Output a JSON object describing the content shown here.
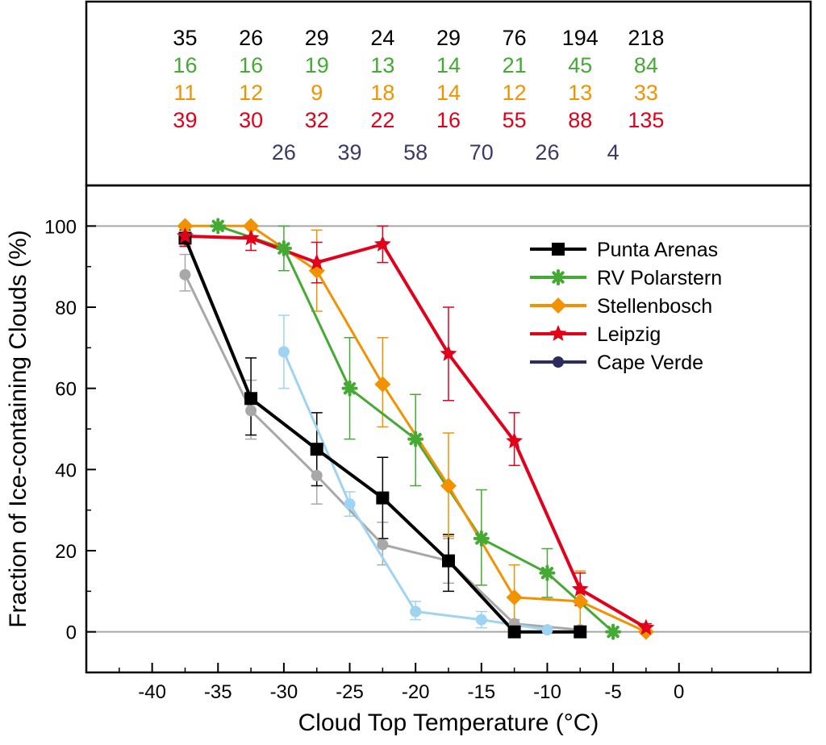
{
  "chart_data": {
    "type": "line",
    "xlabel": "Cloud Top Temperature (°C)",
    "ylabel": "Fraction of Ice-containing Clouds (%)",
    "xlim": [
      -45,
      10
    ],
    "ylim": [
      -10,
      110
    ],
    "xticks": [
      -40,
      -35,
      -30,
      -25,
      -20,
      -15,
      -10,
      -5,
      0
    ],
    "yticks": [
      0,
      20,
      40,
      60,
      80,
      100
    ],
    "grid_lines_y": [
      0,
      100
    ],
    "legend_position": "top-right",
    "legend": [
      {
        "label": "Punta Arenas",
        "color": "#000000",
        "marker": "square"
      },
      {
        "label": "RV Polarstern",
        "color": "#44aa33",
        "marker": "asterisk"
      },
      {
        "label": "Stellenbosch",
        "color": "#f39200",
        "marker": "diamond"
      },
      {
        "label": "Leipzig",
        "color": "#e2001a",
        "marker": "star"
      },
      {
        "label": "Cape Verde",
        "color": "#2c2c5e",
        "marker": "circle"
      }
    ],
    "series": [
      {
        "name": "",
        "color": "#a8a8a8",
        "marker": "circle",
        "line_width": 3,
        "points": [
          {
            "x": -37.5,
            "y": 88,
            "lo": 84,
            "hi": 93
          },
          {
            "x": -32.5,
            "y": 54.5,
            "lo": 47.5,
            "hi": 62
          },
          {
            "x": -27.5,
            "y": 38.5,
            "lo": 31.5,
            "hi": 46
          },
          {
            "x": -22.5,
            "y": 21.5,
            "lo": 16.5,
            "hi": 27
          },
          {
            "x": -17.5,
            "y": 17.5,
            "lo": 12,
            "hi": 23
          },
          {
            "x": -12.5,
            "y": 2,
            "lo": 1,
            "hi": 3
          },
          {
            "x": -7.5,
            "y": 0.5,
            "lo": 0,
            "hi": 1
          }
        ]
      },
      {
        "name": "",
        "color": "#9ed4f2",
        "marker": "circle",
        "line_width": 3,
        "points": [
          {
            "x": -30,
            "y": 69,
            "lo": 60,
            "hi": 78
          },
          {
            "x": -25,
            "y": 31.5,
            "lo": 28.5,
            "hi": 34.5
          },
          {
            "x": -20,
            "y": 5,
            "lo": 3,
            "hi": 7.5
          },
          {
            "x": -15,
            "y": 3,
            "lo": 1,
            "hi": 5
          },
          {
            "x": -10,
            "y": 0.5,
            "lo": 0,
            "hi": 1
          }
        ]
      },
      {
        "name": "Punta Arenas",
        "color": "#000000",
        "marker": "square",
        "line_width": 4,
        "points": [
          {
            "x": -37.5,
            "y": 97,
            "lo": 95,
            "hi": 99
          },
          {
            "x": -32.5,
            "y": 57.5,
            "lo": 48.5,
            "hi": 67.5
          },
          {
            "x": -27.5,
            "y": 45,
            "lo": 36,
            "hi": 54
          },
          {
            "x": -22.5,
            "y": 33,
            "lo": 23,
            "hi": 43
          },
          {
            "x": -17.5,
            "y": 17.5,
            "lo": 10,
            "hi": 24
          },
          {
            "x": -12.5,
            "y": 0,
            "lo": 0,
            "hi": 0
          },
          {
            "x": -7.5,
            "y": 0,
            "lo": 0,
            "hi": 0
          }
        ]
      },
      {
        "name": "RV Polarstern",
        "color": "#44aa33",
        "marker": "asterisk",
        "line_width": 3,
        "points": [
          {
            "x": -35,
            "y": 100,
            "lo": 100,
            "hi": 100
          },
          {
            "x": -30,
            "y": 94.5,
            "lo": 89,
            "hi": 100
          },
          {
            "x": -25,
            "y": 60,
            "lo": 47.5,
            "hi": 72.5
          },
          {
            "x": -20,
            "y": 47.5,
            "lo": 36,
            "hi": 58.5
          },
          {
            "x": -15,
            "y": 23,
            "lo": 11.5,
            "hi": 35
          },
          {
            "x": -10,
            "y": 14.5,
            "lo": 8.5,
            "hi": 20.5
          },
          {
            "x": -5,
            "y": 0,
            "lo": 0,
            "hi": 0
          }
        ]
      },
      {
        "name": "Stellenbosch",
        "color": "#f39200",
        "marker": "diamond",
        "line_width": 3,
        "points": [
          {
            "x": -37.5,
            "y": 100,
            "lo": 100,
            "hi": 100
          },
          {
            "x": -32.5,
            "y": 100,
            "lo": 100,
            "hi": 100
          },
          {
            "x": -27.5,
            "y": 89,
            "lo": 79,
            "hi": 99
          },
          {
            "x": -22.5,
            "y": 61,
            "lo": 50.5,
            "hi": 72.5
          },
          {
            "x": -17.5,
            "y": 36,
            "lo": 23.5,
            "hi": 49
          },
          {
            "x": -12.5,
            "y": 8.5,
            "lo": 2,
            "hi": 16.5
          },
          {
            "x": -7.5,
            "y": 7.5,
            "lo": 0,
            "hi": 15
          },
          {
            "x": -2.5,
            "y": 0,
            "lo": 0,
            "hi": 0
          }
        ]
      },
      {
        "name": "Leipzig",
        "color": "#e2001a",
        "marker": "star",
        "line_width": 4,
        "points": [
          {
            "x": -37.5,
            "y": 97.5,
            "lo": 95,
            "hi": 100
          },
          {
            "x": -32.5,
            "y": 97,
            "lo": 94,
            "hi": 100
          },
          {
            "x": -27.5,
            "y": 91,
            "lo": 86,
            "hi": 96
          },
          {
            "x": -22.5,
            "y": 95.5,
            "lo": 91,
            "hi": 100
          },
          {
            "x": -17.5,
            "y": 68.5,
            "lo": 57,
            "hi": 80
          },
          {
            "x": -12.5,
            "y": 47,
            "lo": 41,
            "hi": 54
          },
          {
            "x": -7.5,
            "y": 10.5,
            "lo": 6.5,
            "hi": 14.5
          },
          {
            "x": -2.5,
            "y": 1,
            "lo": 0,
            "hi": 2
          }
        ]
      }
    ],
    "counts": [
      {
        "color": "#000000",
        "x": [
          -37.5,
          -32.5,
          -27.5,
          -22.5,
          -17.5,
          -12.5,
          -7.5,
          -2.5
        ],
        "values": [
          "35",
          "26",
          "29",
          "24",
          "29",
          "76",
          "194",
          "218"
        ]
      },
      {
        "color": "#44aa33",
        "x": [
          -37.5,
          -32.5,
          -27.5,
          -22.5,
          -17.5,
          -12.5,
          -7.5,
          -2.5
        ],
        "values": [
          "16",
          "16",
          "19",
          "13",
          "14",
          "21",
          "45",
          "84"
        ]
      },
      {
        "color": "#f39200",
        "x": [
          -37.5,
          -32.5,
          -27.5,
          -22.5,
          -17.5,
          -12.5,
          -7.5,
          -2.5
        ],
        "values": [
          "11",
          "12",
          "9",
          "18",
          "14",
          "12",
          "13",
          "33"
        ]
      },
      {
        "color": "#e2001a",
        "x": [
          -37.5,
          -32.5,
          -27.5,
          -22.5,
          -17.5,
          -12.5,
          -7.5,
          -2.5
        ],
        "values": [
          "39",
          "30",
          "32",
          "22",
          "16",
          "55",
          "88",
          "135"
        ]
      },
      {
        "color": "#3a3a6a",
        "x": [
          -30,
          -25,
          -20,
          -15,
          -10,
          -5
        ],
        "values": [
          "26",
          "39",
          "58",
          "70",
          "26",
          "4"
        ]
      }
    ]
  }
}
